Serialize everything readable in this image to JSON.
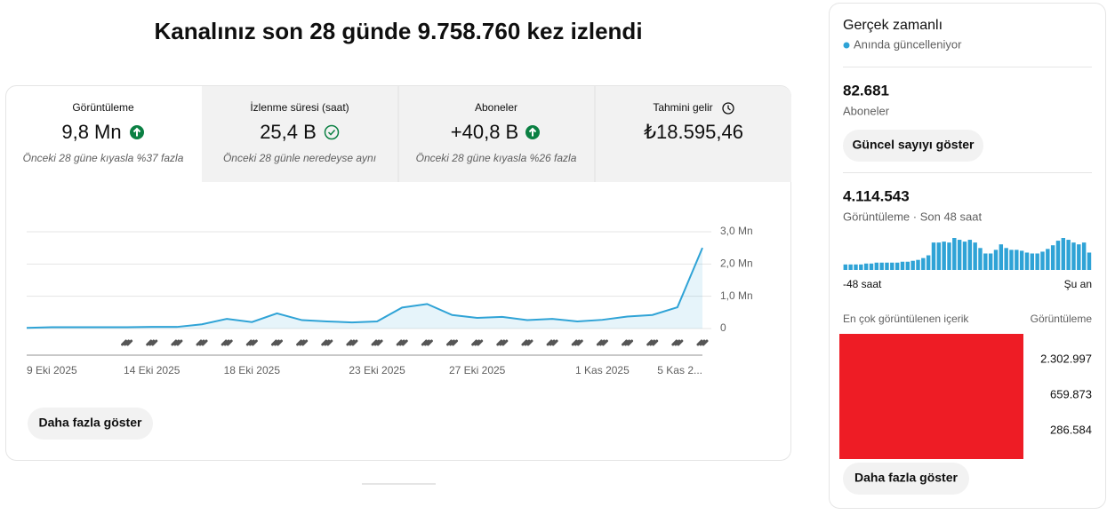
{
  "header": {
    "title": "Kanalınız son 28 günde 9.758.760 kez izlendi"
  },
  "metrics": [
    {
      "label": "Görüntüleme",
      "value": "9,8 Mn",
      "note": "Önceki 28 güne kıyasla %37 fazla"
    },
    {
      "label": "İzlenme süresi (saat)",
      "value": "25,4 B",
      "note": "Önceki 28 günle neredeyse aynı"
    },
    {
      "label": "Aboneler",
      "value": "+40,8 B",
      "note": "Önceki 28 güne kıyasla %26 fazla"
    },
    {
      "label": "Tahmini gelir",
      "value": "₺18.595,46"
    }
  ],
  "chart_data": [
    {
      "type": "line",
      "categories": [
        "9 Eki 2025",
        null,
        null,
        null,
        null,
        "14 Eki 2025",
        null,
        null,
        null,
        "18 Eki 2025",
        null,
        null,
        null,
        null,
        "23 Eki 2025",
        null,
        null,
        null,
        "27 Eki 2025",
        null,
        null,
        null,
        null,
        "1 Kas 2025",
        null,
        null,
        null,
        "5 Kas 2..."
      ],
      "values": [
        0.02,
        0.04,
        0.04,
        0.04,
        0.04,
        0.05,
        0.05,
        0.13,
        0.3,
        0.2,
        0.47,
        0.26,
        0.22,
        0.19,
        0.22,
        0.65,
        0.76,
        0.42,
        0.33,
        0.36,
        0.26,
        0.3,
        0.22,
        0.27,
        0.37,
        0.42,
        0.66,
        2.5
      ],
      "color": "#2fa3d6",
      "ylim": [
        0,
        3
      ],
      "yticks": [
        0,
        {
          "value": 1,
          "label": "1,0 Mn"
        },
        {
          "value": 2,
          "label": "2,0 Mn"
        },
        {
          "value": 3,
          "label": "3,0 Mn"
        }
      ],
      "grid": true
    },
    {
      "type": "bar",
      "values": [
        25800,
        25800,
        25800,
        25800,
        30100,
        30100,
        34400,
        34400,
        34400,
        34400,
        34400,
        38700,
        38700,
        43000,
        47300,
        55900,
        68800,
        129000,
        129000,
        133300,
        129000,
        150500,
        141900,
        133300,
        141900,
        129000,
        103200,
        77400,
        77400,
        94600,
        120400,
        103200,
        94600,
        94600,
        90300,
        81700,
        77400,
        77400,
        86000,
        98900,
        116100,
        137600,
        150500,
        141900,
        129000,
        120400,
        129000,
        81700
      ],
      "color": "#2fa3d6"
    }
  ],
  "main_button": "Daha fazla göster",
  "realtime": {
    "title": "Gerçek zamanlı",
    "subtitle": "Anında güncelleniyor",
    "subscribers": {
      "value": "82.681",
      "label": "Aboneler"
    },
    "subscribers_button": "Güncel sayıyı göster",
    "views": {
      "value": "4.114.543",
      "label": "Görüntüleme · Son 48 saat"
    },
    "axis_start": "-48 saat",
    "axis_end": "Şu an",
    "top_content": {
      "title": "En çok görüntülenen içerik",
      "column": "Görüntüleme",
      "rows": [
        "2.302.997",
        "659.873",
        "286.584"
      ]
    },
    "button": "Daha fazla göster"
  }
}
